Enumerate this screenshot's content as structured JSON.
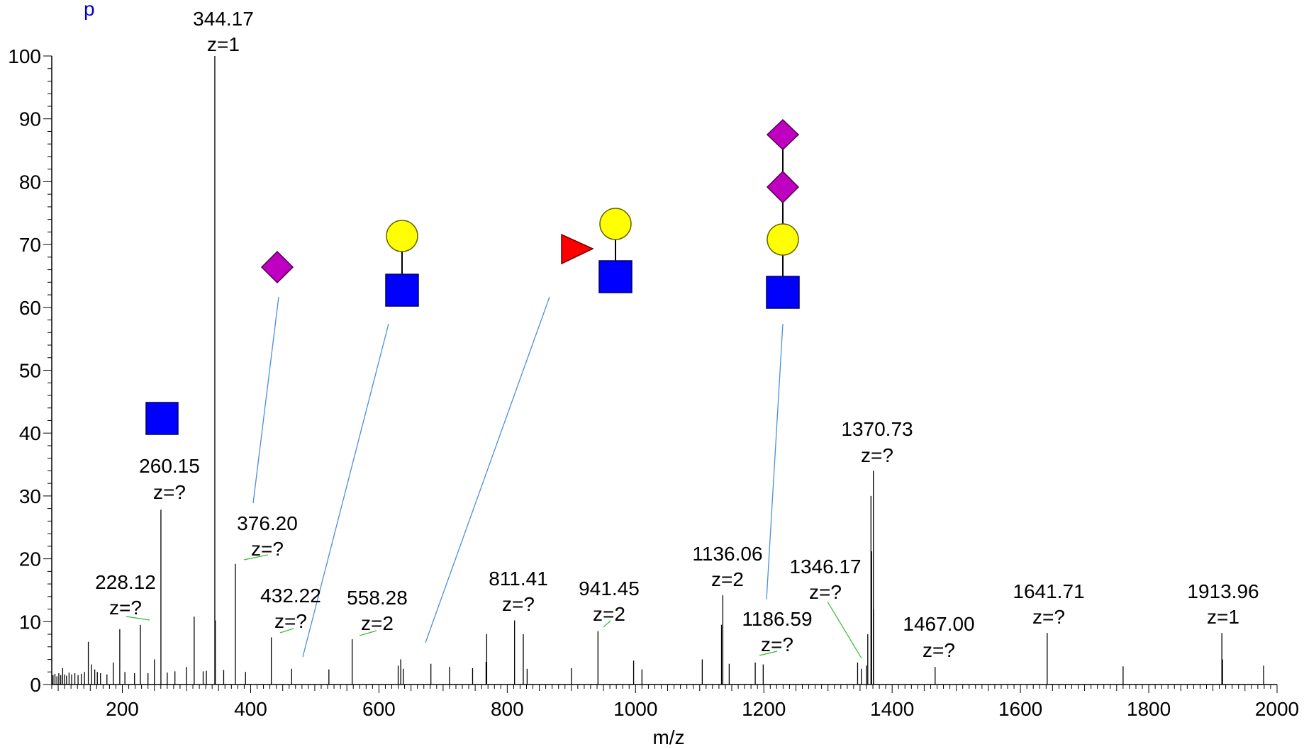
{
  "chart_data": {
    "type": "bar",
    "corner_text": "p",
    "xlabel": "m/z",
    "ylabel": "",
    "xlim": [
      90,
      2000
    ],
    "ylim": [
      0,
      100
    ],
    "x_major_ticks": [
      200,
      400,
      600,
      800,
      1000,
      1200,
      1400,
      1600,
      1800,
      2000
    ],
    "x_minor_step": 10,
    "y_major_ticks": [
      0,
      10,
      20,
      30,
      40,
      50,
      60,
      70,
      80,
      90,
      100
    ],
    "y_minor_step": 2,
    "grid": false,
    "peaks": [
      {
        "x": 92,
        "y": 1.5
      },
      {
        "x": 95,
        "y": 1.7
      },
      {
        "x": 98,
        "y": 1.3
      },
      {
        "x": 101,
        "y": 1.8
      },
      {
        "x": 104,
        "y": 1.5
      },
      {
        "x": 107,
        "y": 2.6
      },
      {
        "x": 110,
        "y": 1.6
      },
      {
        "x": 113,
        "y": 1.4
      },
      {
        "x": 117,
        "y": 1.9
      },
      {
        "x": 121,
        "y": 1.6
      },
      {
        "x": 126,
        "y": 1.8
      },
      {
        "x": 131,
        "y": 1.5
      },
      {
        "x": 136,
        "y": 1.7
      },
      {
        "x": 141,
        "y": 2.0
      },
      {
        "x": 147,
        "y": 6.8
      },
      {
        "x": 152,
        "y": 3.2
      },
      {
        "x": 157,
        "y": 2.4
      },
      {
        "x": 161,
        "y": 2.0
      },
      {
        "x": 166,
        "y": 1.8
      },
      {
        "x": 176,
        "y": 1.6
      },
      {
        "x": 186,
        "y": 3.5
      },
      {
        "x": 196,
        "y": 8.8
      },
      {
        "x": 204,
        "y": 2.0
      },
      {
        "x": 219,
        "y": 1.8
      },
      {
        "x": 228.12,
        "y": 9.5
      },
      {
        "x": 240,
        "y": 1.8
      },
      {
        "x": 250,
        "y": 4.0
      },
      {
        "x": 260.15,
        "y": 27.8
      },
      {
        "x": 270,
        "y": 1.9
      },
      {
        "x": 282,
        "y": 2.1
      },
      {
        "x": 300,
        "y": 2.8
      },
      {
        "x": 312,
        "y": 10.8
      },
      {
        "x": 326,
        "y": 2.1
      },
      {
        "x": 331,
        "y": 2.2
      },
      {
        "x": 344.17,
        "y": 100
      },
      {
        "x": 345,
        "y": 10.2
      },
      {
        "x": 358,
        "y": 2.3
      },
      {
        "x": 376.2,
        "y": 19.2
      },
      {
        "x": 392,
        "y": 2.0
      },
      {
        "x": 432.22,
        "y": 7.5
      },
      {
        "x": 464,
        "y": 2.5
      },
      {
        "x": 522,
        "y": 2.4
      },
      {
        "x": 558.28,
        "y": 7.2
      },
      {
        "x": 630,
        "y": 3.0
      },
      {
        "x": 634,
        "y": 4.0
      },
      {
        "x": 638,
        "y": 2.5
      },
      {
        "x": 681,
        "y": 3.3
      },
      {
        "x": 710,
        "y": 2.8
      },
      {
        "x": 746,
        "y": 2.6
      },
      {
        "x": 767,
        "y": 3.6
      },
      {
        "x": 768,
        "y": 8.0
      },
      {
        "x": 811.41,
        "y": 10.2
      },
      {
        "x": 825,
        "y": 8.0
      },
      {
        "x": 831,
        "y": 2.5
      },
      {
        "x": 900,
        "y": 2.6
      },
      {
        "x": 941.45,
        "y": 8.5
      },
      {
        "x": 997,
        "y": 3.8
      },
      {
        "x": 1010,
        "y": 2.4
      },
      {
        "x": 1104,
        "y": 4.0
      },
      {
        "x": 1134,
        "y": 9.5
      },
      {
        "x": 1136.06,
        "y": 14.2
      },
      {
        "x": 1146,
        "y": 3.3
      },
      {
        "x": 1186.59,
        "y": 3.5
      },
      {
        "x": 1199,
        "y": 3.2
      },
      {
        "x": 1346.17,
        "y": 3.5
      },
      {
        "x": 1352,
        "y": 2.5
      },
      {
        "x": 1360,
        "y": 3.0
      },
      {
        "x": 1362,
        "y": 8.0
      },
      {
        "x": 1367,
        "y": 30.0
      },
      {
        "x": 1368,
        "y": 21.2
      },
      {
        "x": 1370.73,
        "y": 34.0
      },
      {
        "x": 1371,
        "y": 12.0
      },
      {
        "x": 1467.0,
        "y": 2.8
      },
      {
        "x": 1641.71,
        "y": 8.2
      },
      {
        "x": 1760,
        "y": 2.9
      },
      {
        "x": 1913.96,
        "y": 8.2
      },
      {
        "x": 1915,
        "y": 4.0
      },
      {
        "x": 1979,
        "y": 3.0
      }
    ],
    "annotations": [
      {
        "mz": "344.17",
        "z": "z=1",
        "x": 344.17,
        "y": 100
      },
      {
        "mz": "260.15",
        "z": "z=?",
        "x": 260.15,
        "y": 27.8
      },
      {
        "mz": "228.12",
        "z": "z=?",
        "x": 228.12,
        "y": 9.5
      },
      {
        "mz": "376.20",
        "z": "z=?",
        "x": 376.2,
        "y": 19.2
      },
      {
        "mz": "432.22",
        "z": "z=?",
        "x": 432.22,
        "y": 7.5
      },
      {
        "mz": "558.28",
        "z": "z=2",
        "x": 558.28,
        "y": 7.2
      },
      {
        "mz": "811.41",
        "z": "z=?",
        "x": 811.41,
        "y": 10.2
      },
      {
        "mz": "941.45",
        "z": "z=2",
        "x": 941.45,
        "y": 8.5
      },
      {
        "mz": "1136.06",
        "z": "z=2",
        "x": 1136.06,
        "y": 14.2
      },
      {
        "mz": "1186.59",
        "z": "z=?",
        "x": 1186.59,
        "y": 3.5
      },
      {
        "mz": "1346.17",
        "z": "z=?",
        "x": 1346.17,
        "y": 3.5
      },
      {
        "mz": "1370.73",
        "z": "z=?",
        "x": 1370.73,
        "y": 34.0
      },
      {
        "mz": "1467.00",
        "z": "z=?",
        "x": 1467.0,
        "y": 2.8
      },
      {
        "mz": "1641.71",
        "z": "z=?",
        "x": 1641.71,
        "y": 8.2
      },
      {
        "mz": "1913.96",
        "z": "z=1",
        "x": 1913.96,
        "y": 8.2
      }
    ],
    "glycan_symbols": [
      {
        "name": "hexnac-square",
        "color": "#0000ff"
      },
      {
        "name": "neuac-diamond",
        "color": "#c000c0"
      },
      {
        "name": "hex-circle",
        "color": "#ffff00"
      },
      {
        "name": "fucose-triangle",
        "color": "#ff0000"
      }
    ],
    "colors": {
      "peaks": "#000000",
      "callout_lines": "#4a90d9",
      "label_leaders": "#33bb33"
    }
  }
}
